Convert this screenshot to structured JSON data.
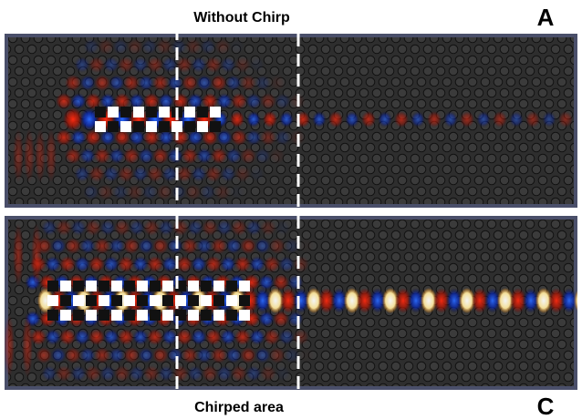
{
  "panels": [
    {
      "title": "Without Chirp",
      "letter": "A"
    },
    {
      "title": "Chirped area",
      "letter": "C"
    }
  ]
}
